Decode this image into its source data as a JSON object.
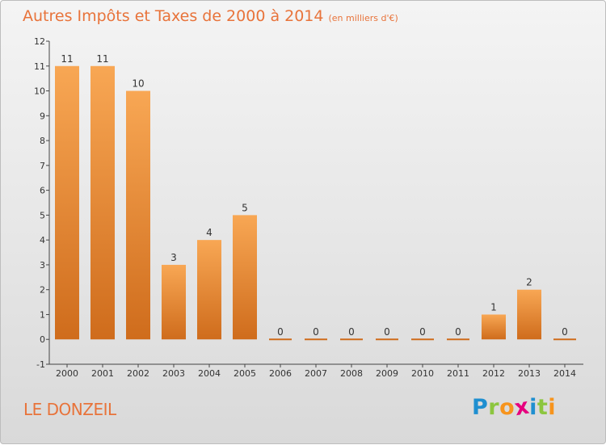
{
  "header": {
    "title": "Autres Impôts et Taxes de 2000 à 2014",
    "unit": "(en milliers d'€)"
  },
  "footer": {
    "commune": "LE DONZEIL",
    "logo_text": "Proxiti",
    "logo_letters": [
      {
        "char": "P",
        "color": "#1f8fd0"
      },
      {
        "char": "r",
        "color": "#8cc63f"
      },
      {
        "char": "o",
        "color": "#f7941d"
      },
      {
        "char": "x",
        "color": "#e6007e"
      },
      {
        "char": "i",
        "color": "#1f8fd0"
      },
      {
        "char": "t",
        "color": "#8cc63f"
      },
      {
        "char": "i",
        "color": "#f7941d"
      }
    ]
  },
  "colors": {
    "accent": "#e8733a",
    "bar_light": "#f8a754",
    "bar_dark": "#cf6c1c"
  },
  "chart_data": {
    "type": "bar",
    "categories": [
      "2000",
      "2001",
      "2002",
      "2003",
      "2004",
      "2005",
      "2006",
      "2007",
      "2008",
      "2009",
      "2010",
      "2011",
      "2012",
      "2013",
      "2014"
    ],
    "values": [
      11,
      11,
      10,
      3,
      4,
      5,
      0,
      0,
      0,
      0,
      0,
      0,
      1,
      2,
      0
    ],
    "data_labels": [
      "11",
      "11",
      "10",
      "3",
      "4",
      "5",
      "0",
      "0",
      "0",
      "0",
      "0",
      "0",
      "1",
      "2",
      "0"
    ],
    "title": "Autres Impôts et Taxes de 2000 à 2014",
    "subtitle": "(en milliers d'€)",
    "xlabel": "",
    "ylabel": "",
    "ylim": [
      -1,
      12
    ],
    "yticks": [
      -1,
      0,
      1,
      2,
      3,
      4,
      5,
      6,
      7,
      8,
      9,
      10,
      11,
      12
    ],
    "ytick_labels": [
      "-1",
      "0",
      "1",
      "2",
      "3",
      "4",
      "5",
      "6",
      "7",
      "8",
      "9",
      "10",
      "11",
      "12"
    ],
    "grid": false,
    "legend": "none"
  }
}
